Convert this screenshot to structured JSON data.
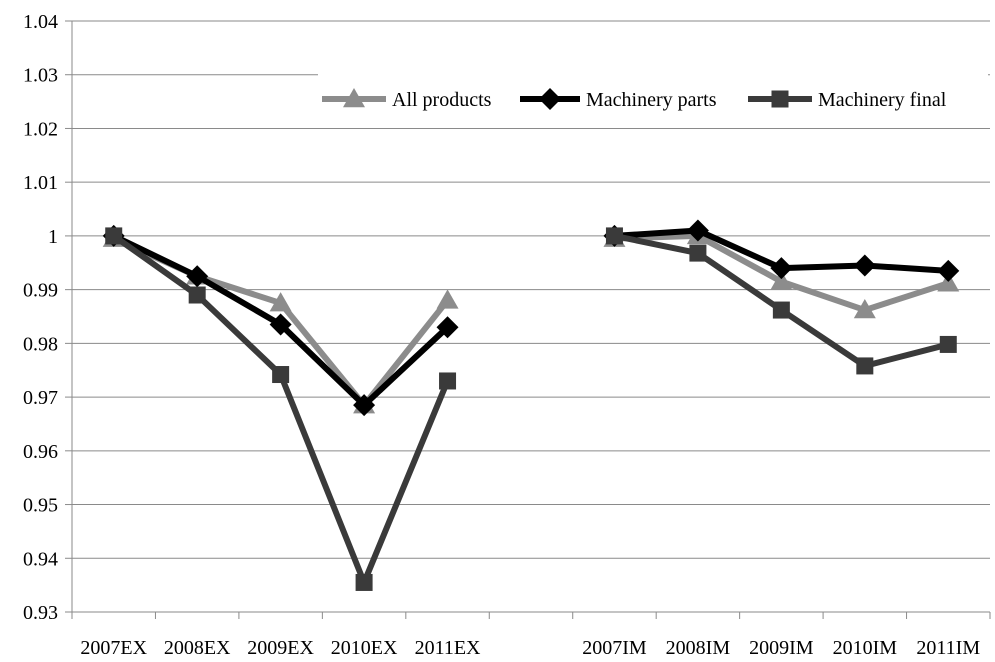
{
  "chart_data": {
    "type": "line",
    "categories": [
      "2007EX",
      "2008EX",
      "2009EX",
      "2010EX",
      "2011EX",
      "",
      "2007IM",
      "2008IM",
      "2009IM",
      "2010IM",
      "2011IM"
    ],
    "y_ticks": [
      "0.93",
      "0.94",
      "0.95",
      "0.96",
      "0.97",
      "0.98",
      "0.99",
      "1",
      "1.01",
      "1.02",
      "1.03",
      "1.04"
    ],
    "ylim": [
      0.93,
      1.04
    ],
    "grid": true,
    "legend_position": "top-right",
    "title": "",
    "xlabel": "",
    "ylabel": "",
    "series": [
      {
        "name": "All products",
        "color": "#8c8c8c",
        "marker": "triangle",
        "values": [
          0.9995,
          0.9925,
          0.9875,
          0.9685,
          0.988,
          null,
          0.9995,
          1.0,
          0.9915,
          0.9862,
          0.9912
        ]
      },
      {
        "name": "Machinery parts",
        "color": "#000000",
        "marker": "diamond",
        "values": [
          1.0,
          0.9925,
          0.9835,
          0.9685,
          0.983,
          null,
          1.0,
          1.001,
          0.994,
          0.9945,
          0.9935
        ]
      },
      {
        "name": "Machinery final",
        "color": "#3a3a3a",
        "marker": "square",
        "values": [
          1.0,
          0.989,
          0.9742,
          0.9355,
          0.973,
          null,
          1.0,
          0.9968,
          0.9862,
          0.9758,
          0.9798
        ]
      }
    ]
  }
}
